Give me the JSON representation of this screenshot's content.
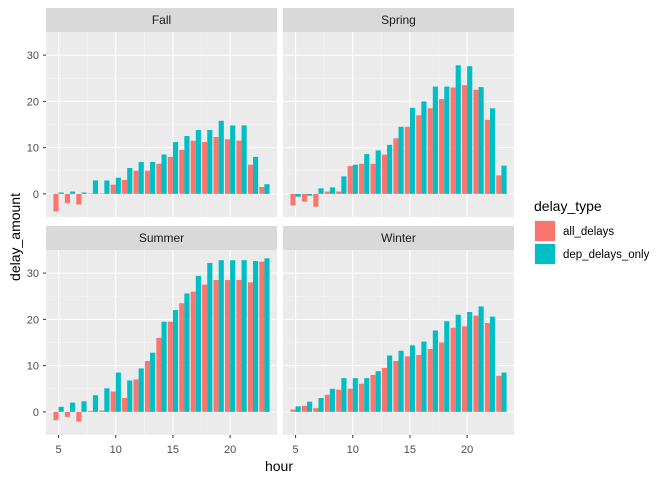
{
  "chart_data": {
    "type": "bar",
    "xlabel": "hour",
    "ylabel": "delay_amount",
    "x_ticks": [
      5,
      10,
      15,
      20
    ],
    "y_ticks": [
      0,
      10,
      20,
      30
    ],
    "xlim": [
      3.9,
      24.1
    ],
    "ylim": [
      -5,
      35
    ],
    "grid": true,
    "legend": {
      "title": "delay_type",
      "position": "right",
      "entries": [
        {
          "label": "all_delays",
          "color": "#F8766D"
        },
        {
          "label": "dep_delays_only",
          "color": "#00BFC4"
        }
      ]
    },
    "hours": [
      5,
      6,
      7,
      8,
      9,
      10,
      11,
      12,
      13,
      14,
      15,
      16,
      17,
      18,
      19,
      20,
      21,
      22,
      23
    ],
    "panels": [
      {
        "name": "Fall",
        "series": [
          {
            "name": "all_delays",
            "values": [
              -3.8,
              -2.0,
              -2.3,
              0.1,
              0.1,
              2.0,
              3.0,
              5.0,
              5.0,
              6.5,
              8.0,
              9.5,
              11.5,
              11.2,
              12.3,
              11.8,
              11.5,
              6.3,
              1.5
            ]
          },
          {
            "name": "dep_delays_only",
            "values": [
              0.3,
              0.5,
              0.3,
              2.9,
              2.9,
              3.5,
              5.6,
              6.9,
              6.9,
              8.5,
              11.2,
              12.5,
              13.8,
              13.8,
              15.8,
              14.8,
              14.8,
              8.0,
              2.1
            ]
          }
        ]
      },
      {
        "name": "Spring",
        "series": [
          {
            "name": "all_delays",
            "values": [
              -2.5,
              -1.7,
              -2.8,
              0.5,
              0.5,
              6.0,
              6.5,
              6.5,
              8.5,
              12.0,
              14.5,
              17.0,
              18.5,
              20.5,
              23.0,
              23.5,
              22.5,
              16.0,
              4.0
            ]
          },
          {
            "name": "dep_delays_only",
            "values": [
              -0.6,
              -0.4,
              1.2,
              1.4,
              3.8,
              6.3,
              8.6,
              9.4,
              10.6,
              14.5,
              18.6,
              20.0,
              23.2,
              23.2,
              27.8,
              27.6,
              23.1,
              18.5,
              6.1
            ]
          }
        ]
      },
      {
        "name": "Summer",
        "series": [
          {
            "name": "all_delays",
            "values": [
              -1.8,
              -1.1,
              -2.1,
              0.2,
              0.3,
              4.4,
              3.0,
              7.0,
              11.0,
              16.0,
              19.5,
              23.5,
              26.0,
              27.5,
              28.5,
              28.5,
              28.5,
              28.0,
              32.5
            ]
          },
          {
            "name": "dep_delays_only",
            "values": [
              1.1,
              2.0,
              2.3,
              3.6,
              5.1,
              8.5,
              6.8,
              9.4,
              12.8,
              19.5,
              22.0,
              25.6,
              29.4,
              32.2,
              32.8,
              32.8,
              32.8,
              32.6,
              33.2
            ]
          }
        ]
      },
      {
        "name": "Winter",
        "series": [
          {
            "name": "all_delays",
            "values": [
              0.5,
              1.3,
              0.8,
              3.7,
              4.8,
              5.0,
              6.1,
              8.0,
              9.5,
              11.0,
              12.0,
              12.3,
              13.6,
              15.0,
              18.2,
              18.5,
              20.8,
              19.2,
              7.8
            ]
          },
          {
            "name": "dep_delays_only",
            "values": [
              1.2,
              2.2,
              3.0,
              5.0,
              7.3,
              7.3,
              7.3,
              8.8,
              12.2,
              13.2,
              14.4,
              15.2,
              17.6,
              19.6,
              21.0,
              21.6,
              22.8,
              20.6,
              8.5
            ]
          }
        ]
      }
    ]
  }
}
